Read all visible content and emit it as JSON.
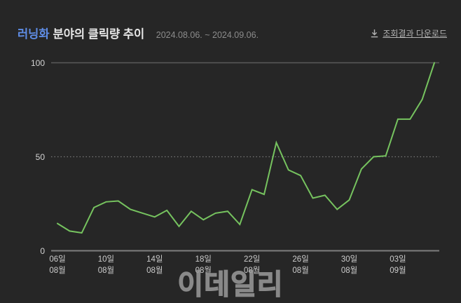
{
  "header": {
    "keyword": "러닝화",
    "title_rest": "분야의 클릭량 추이",
    "date_range": "2024.08.06. ~ 2024.09.06.",
    "download_label": "조회결과 다운로드"
  },
  "watermark": "이데일리",
  "colors": {
    "background": "#262626",
    "keyword_accent": "#5f8de6",
    "title_text": "#e8e8e8",
    "muted_text": "#8c8c8c",
    "axis_label": "#cccccc",
    "line": "#76c35f",
    "grid_top": "#5a5a5a",
    "grid_mid": "#777777",
    "grid_bottom": "#7d7d7d"
  },
  "chart_data": {
    "type": "line",
    "title": "러닝화 분야의 클릭량 추이",
    "subtitle": "2024.08.06. ~ 2024.09.06.",
    "xlabel": "",
    "ylabel": "",
    "ylim": [
      0,
      100
    ],
    "yticks": [
      0,
      50,
      100
    ],
    "grid": "horizontal-only, dotted at 50",
    "legend": false,
    "x": [
      "08.06",
      "08.07",
      "08.08",
      "08.09",
      "08.10",
      "08.11",
      "08.12",
      "08.13",
      "08.14",
      "08.15",
      "08.16",
      "08.17",
      "08.18",
      "08.19",
      "08.20",
      "08.21",
      "08.22",
      "08.23",
      "08.24",
      "08.25",
      "08.26",
      "08.27",
      "08.28",
      "08.29",
      "08.30",
      "08.31",
      "09.01",
      "09.02",
      "09.03",
      "09.04",
      "09.05",
      "09.06"
    ],
    "values": [
      14.5,
      10.5,
      9.5,
      23,
      26,
      26.5,
      22,
      20,
      18,
      21.5,
      13,
      21,
      16.5,
      20,
      21,
      14,
      32.5,
      30,
      57.5,
      43,
      40,
      28,
      29.5,
      22,
      27,
      43.5,
      50,
      50.5,
      70,
      70,
      80.5,
      100
    ],
    "xticks": [
      {
        "index": 0,
        "day": "06일",
        "month": "08월"
      },
      {
        "index": 4,
        "day": "10일",
        "month": "08월"
      },
      {
        "index": 8,
        "day": "14일",
        "month": "08월"
      },
      {
        "index": 12,
        "day": "18일",
        "month": "08월"
      },
      {
        "index": 16,
        "day": "22일",
        "month": "08월"
      },
      {
        "index": 20,
        "day": "26일",
        "month": "08월"
      },
      {
        "index": 24,
        "day": "30일",
        "month": "08월"
      },
      {
        "index": 28,
        "day": "03일",
        "month": "09월"
      }
    ]
  }
}
